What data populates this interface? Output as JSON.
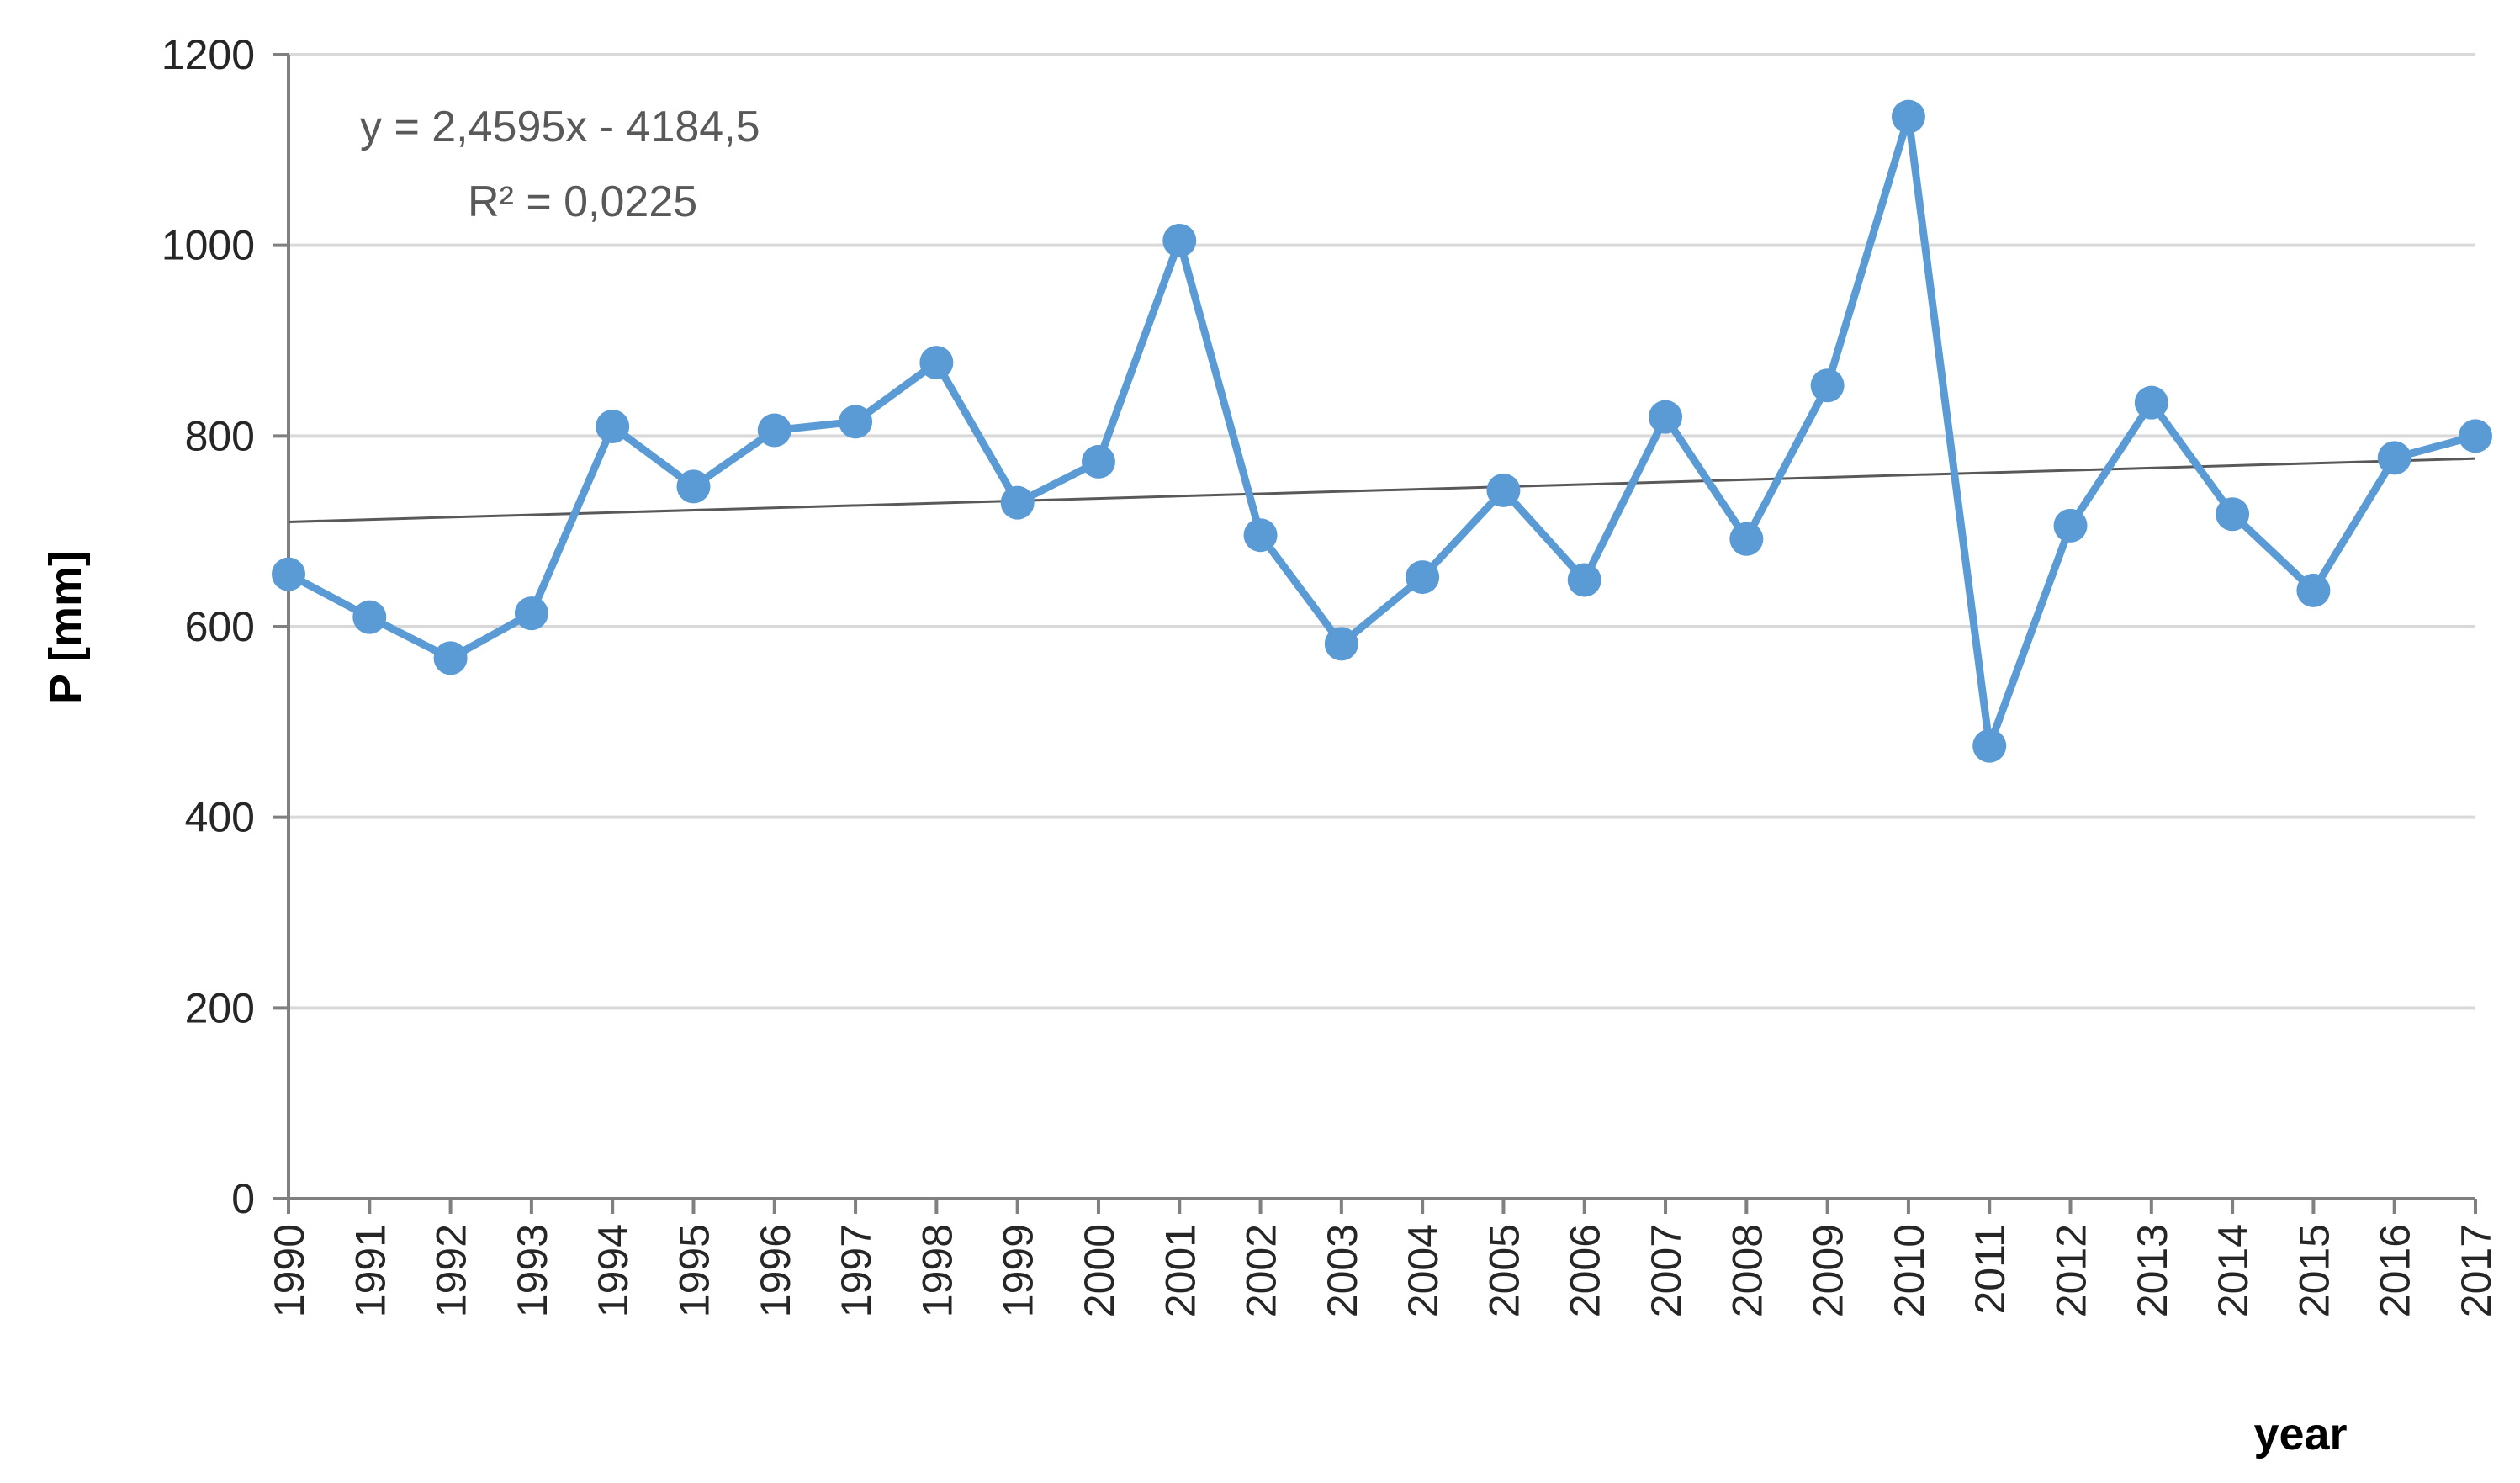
{
  "chart_data": {
    "type": "line",
    "xlabel": "year",
    "ylabel": "P [mm]",
    "ylim": [
      0,
      1200
    ],
    "yticks": [
      0,
      200,
      400,
      600,
      800,
      1000,
      1200
    ],
    "grid": true,
    "x": [
      "1990",
      "1991",
      "1992",
      "1993",
      "1994",
      "1995",
      "1996",
      "1997",
      "1998",
      "1999",
      "2000",
      "2001",
      "2002",
      "2003",
      "2004",
      "2005",
      "2006",
      "2007",
      "2008",
      "2009",
      "2010",
      "2011",
      "2012",
      "2013",
      "2014",
      "2015",
      "2016",
      "2017"
    ],
    "series": [
      {
        "values": [
          655,
          610,
          567,
          614,
          810,
          747,
          806,
          815,
          877,
          730,
          773,
          1005,
          696,
          582,
          652,
          743,
          649,
          820,
          692,
          853,
          1135,
          475,
          706,
          835,
          718,
          638,
          777,
          800
        ],
        "color": "#5B9BD5"
      }
    ],
    "trendline": {
      "equation": "y = 2,4595x - 4184,5",
      "r_squared": "R² = 0,0225",
      "slope": 2.4595,
      "intercept": -4184.5,
      "color": "#595959"
    }
  },
  "colors": {
    "series": "#5B9BD5",
    "trendline": "#595959",
    "grid": "#D9D9D9",
    "axis": "#808080"
  }
}
